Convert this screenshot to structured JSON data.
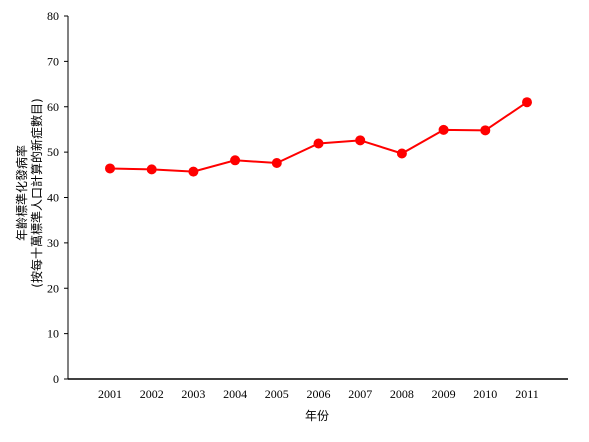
{
  "chart_data": {
    "type": "line",
    "title": "",
    "xlabel": "年份",
    "ylabel": [
      "年齡標準化發病率",
      "(按每十萬標準人口計算的新症數目)"
    ],
    "x": [
      "2001",
      "2002",
      "2003",
      "2004",
      "2005",
      "2006",
      "2007",
      "2008",
      "2009",
      "2010",
      "2011"
    ],
    "series": [
      {
        "values": [
          46.4,
          46.2,
          45.7,
          48.2,
          47.6,
          51.9,
          52.6,
          49.7,
          54.9,
          54.8,
          61.0
        ],
        "color": "#ff0000"
      }
    ],
    "ylim": [
      0,
      80
    ],
    "yticks": [
      0,
      10,
      20,
      30,
      40,
      50,
      60,
      70,
      80
    ],
    "grid": false,
    "legend": "none"
  }
}
